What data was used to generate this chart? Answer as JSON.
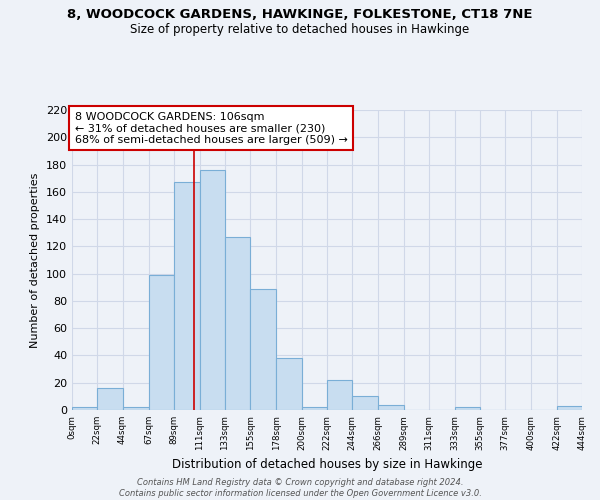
{
  "title": "8, WOODCOCK GARDENS, HAWKINGE, FOLKESTONE, CT18 7NE",
  "subtitle": "Size of property relative to detached houses in Hawkinge",
  "xlabel": "Distribution of detached houses by size in Hawkinge",
  "ylabel": "Number of detached properties",
  "bar_color": "#c8ddf0",
  "bar_edge_color": "#7aaed6",
  "background_color": "#eef2f8",
  "grid_color": "#d0d8e8",
  "vline_color": "#cc0000",
  "vline_x": 106,
  "annotation_line1": "8 WOODCOCK GARDENS: 106sqm",
  "annotation_line2": "← 31% of detached houses are smaller (230)",
  "annotation_line3": "68% of semi-detached houses are larger (509) →",
  "annotation_box_color": "white",
  "annotation_box_edge": "#cc0000",
  "footnote": "Contains HM Land Registry data © Crown copyright and database right 2024.\nContains public sector information licensed under the Open Government Licence v3.0.",
  "bin_edges": [
    0,
    22,
    44,
    67,
    89,
    111,
    133,
    155,
    178,
    200,
    222,
    244,
    266,
    289,
    311,
    333,
    355,
    377,
    400,
    422,
    444
  ],
  "bin_counts": [
    2,
    16,
    2,
    99,
    167,
    176,
    127,
    89,
    38,
    2,
    22,
    10,
    4,
    0,
    0,
    2,
    0,
    0,
    0,
    3
  ],
  "tick_labels": [
    "0sqm",
    "22sqm",
    "44sqm",
    "67sqm",
    "89sqm",
    "111sqm",
    "133sqm",
    "155sqm",
    "178sqm",
    "200sqm",
    "222sqm",
    "244sqm",
    "266sqm",
    "289sqm",
    "311sqm",
    "333sqm",
    "355sqm",
    "377sqm",
    "400sqm",
    "422sqm",
    "444sqm"
  ],
  "ylim": [
    0,
    220
  ],
  "yticks": [
    0,
    20,
    40,
    60,
    80,
    100,
    120,
    140,
    160,
    180,
    200,
    220
  ]
}
